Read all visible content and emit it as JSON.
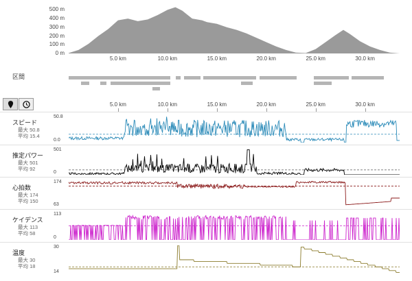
{
  "elevation": {
    "yticks": [
      "500 m",
      "400 m",
      "300 m",
      "200 m",
      "100 m",
      "0 m"
    ],
    "ytick_values": [
      500,
      400,
      300,
      200,
      100,
      0
    ]
  },
  "distance_ticks": [
    "5.0 km",
    "10.0 km",
    "15.0 km",
    "20.0 km",
    "25.0 km",
    "30.0 km"
  ],
  "distance_tick_values": [
    5,
    10,
    15,
    20,
    25,
    30
  ],
  "intervals_label": "区間",
  "toolbar": {
    "map_icon": "map-pin-icon",
    "time_icon": "clock-icon"
  },
  "metrics": [
    {
      "key": "speed",
      "label": "スピード",
      "max_label": "最大",
      "max": "50.8",
      "avg_label": "平均",
      "avg": "15.4",
      "ymax": "50.8",
      "ymin": "0.0",
      "color": "#2a8ab8",
      "avg_color": "#2a8ab8"
    },
    {
      "key": "power",
      "label": "推定パワー",
      "max_label": "最大",
      "max": "501",
      "avg_label": "平均",
      "avg": "92",
      "ymax": "501",
      "ymin": "0",
      "color": "#000000",
      "avg_color": "#555555"
    },
    {
      "key": "hr",
      "label": "心拍数",
      "max_label": "最大",
      "max": "174",
      "avg_label": "平均",
      "avg": "150",
      "ymax": "174",
      "ymin": "63",
      "color": "#8b1a1a",
      "avg_color": "#8b1a1a"
    },
    {
      "key": "cadence",
      "label": "ケイデンス",
      "max_label": "最大",
      "max": "113",
      "avg_label": "平均",
      "avg": "58",
      "ymax": "113",
      "ymin": "0",
      "color": "#cc22cc",
      "avg_color": "#cc22cc"
    },
    {
      "key": "temp",
      "label": "温度",
      "max_label": "最大",
      "max": "30",
      "avg_label": "平均",
      "avg": "18",
      "ymax": "30",
      "ymin": "14",
      "color": "#8a7a2a",
      "avg_color": "#8a7a2a"
    }
  ],
  "chart_data": [
    {
      "type": "area",
      "title": "",
      "ylabel": "",
      "ylim": [
        0,
        550
      ],
      "xlim": [
        0,
        33.5
      ],
      "series": [
        {
          "values": [
            [
              0,
              5
            ],
            [
              1,
              40
            ],
            [
              2,
              110
            ],
            [
              3,
              200
            ],
            [
              4,
              280
            ],
            [
              5,
              380
            ],
            [
              6,
              400
            ],
            [
              7,
              370
            ],
            [
              8,
              390
            ],
            [
              9,
              440
            ],
            [
              10,
              500
            ],
            [
              10.8,
              530
            ],
            [
              11.5,
              490
            ],
            [
              12.5,
              400
            ],
            [
              13.5,
              380
            ],
            [
              14,
              360
            ],
            [
              15,
              340
            ],
            [
              16,
              300
            ],
            [
              17,
              270
            ],
            [
              18,
              230
            ],
            [
              19,
              180
            ],
            [
              20,
              130
            ],
            [
              21,
              80
            ],
            [
              22,
              40
            ],
            [
              23,
              10
            ],
            [
              24,
              5
            ],
            [
              25,
              50
            ],
            [
              26,
              130
            ],
            [
              27,
              210
            ],
            [
              27.8,
              270
            ],
            [
              28.5,
              220
            ],
            [
              29.5,
              140
            ],
            [
              30.5,
              80
            ],
            [
              31.5,
              40
            ],
            [
              32.5,
              10
            ],
            [
              33.5,
              0
            ]
          ]
        }
      ]
    },
    {
      "type": "line",
      "key": "speed",
      "ylim": [
        0,
        50.8
      ],
      "avg": 15.4
    },
    {
      "type": "line",
      "key": "power",
      "ylim": [
        0,
        501
      ],
      "avg": 92
    },
    {
      "type": "line",
      "key": "hr",
      "ylim": [
        63,
        174
      ],
      "avg": 150
    },
    {
      "type": "line",
      "key": "cadence",
      "ylim": [
        0,
        113
      ],
      "avg": 58
    },
    {
      "type": "line",
      "key": "temp",
      "ylim": [
        14,
        30
      ],
      "avg": 18
    }
  ]
}
